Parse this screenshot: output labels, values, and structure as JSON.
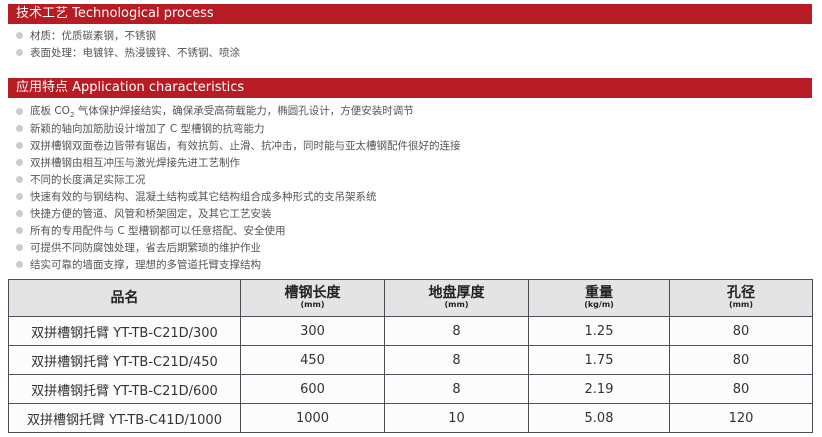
{
  "tech": {
    "title": "技术工艺 Technological process",
    "items": [
      "材质：优质碳素钢，不锈钢",
      "表面处理：电镀锌、热浸镀锌、不锈钢、喷涂"
    ]
  },
  "app": {
    "title": "应用特点 Application characteristics",
    "first_pre": "底板 CO",
    "first_sub": "2",
    "first_post": " 气体保护焊接结实，确保承受高荷载能力，椭圆孔设计，方便安装时调节",
    "items": [
      "新颖的轴向加筋肋设计增加了 C 型槽钢的抗弯能力",
      "双拼槽钢双面卷边皆带有锯齿，有效抗剪、止滑、抗冲击，同时能与亚太槽钢配件很好的连接",
      "双拼槽钢由相互冲压与激光焊接先进工艺制作",
      "不同的长度满足实际工况",
      "快速有效的与钢结构、混凝土结构或其它结构组合成多种形式的支吊架系统",
      "快捷方便的管道、风管和桥架固定，及其它工艺安装",
      "所有的专用配件与 C 型槽钢都可以任意搭配、安全使用",
      "可提供不同防腐蚀处理，省去后期繁琐的维护作业",
      "结实可靠的墙面支撑，理想的多管道托臂支撑结构"
    ]
  },
  "table": {
    "headers": [
      {
        "t": "品名",
        "u": ""
      },
      {
        "t": "槽钢长度",
        "u": "(mm)"
      },
      {
        "t": "地盘厚度",
        "u": "(mm)"
      },
      {
        "t": "重量",
        "u": "(kg/m)"
      },
      {
        "t": "孔径",
        "u": "(mm)"
      }
    ],
    "rows": [
      [
        "双拼槽钢托臂 YT-TB-C21D/300",
        "300",
        "8",
        "1.25",
        "80"
      ],
      [
        "双拼槽钢托臂 YT-TB-C21D/450",
        "450",
        "8",
        "1.75",
        "80"
      ],
      [
        "双拼槽钢托臂 YT-TB-C21D/600",
        "600",
        "8",
        "2.19",
        "80"
      ],
      [
        "双拼槽钢托臂 YT-TB-C41D/1000",
        "1000",
        "10",
        "5.08",
        "120"
      ]
    ]
  },
  "colors": {
    "accent": "#b71c24"
  }
}
